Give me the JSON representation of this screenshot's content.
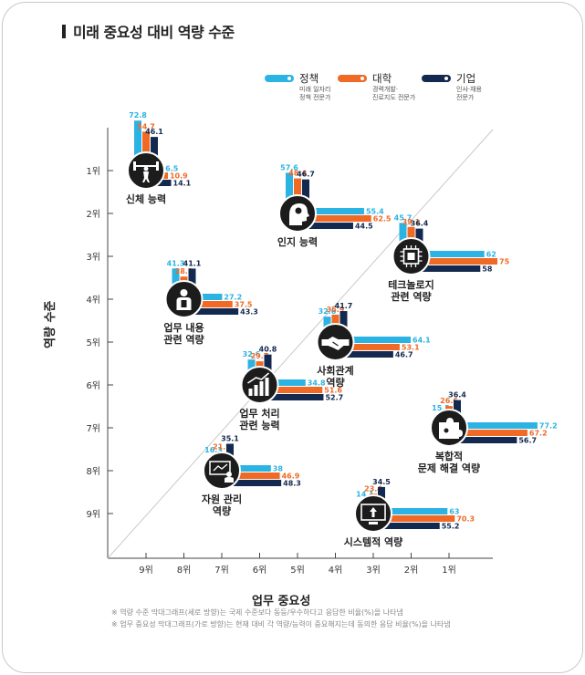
{
  "title": "미래 중요성 대비 역량 수준",
  "legend": [
    {
      "name": "정책",
      "sub": "미래 일자리\n정책 전문가",
      "color": "#2bb3e3"
    },
    {
      "name": "대학",
      "sub": "경력개발·\n진로지도 전문가",
      "color": "#f06a25"
    },
    {
      "name": "기업",
      "sub": "인사·채용\n전문가",
      "color": "#13294f"
    }
  ],
  "footnotes": [
    "※ 역량 수준 막대그래프(세로 방향)는 국제 수준보다 동등/우수하다고 응답한 비율(%)을 나타냄",
    "※ 업무 중요성 막대그래프(가로 방향)는 현재 대비 각 역량/능력이 중요해지는데 동의한 응답 비율(%)을 나타냄"
  ],
  "chart_data": {
    "type": "scatter",
    "xlabel": "업무 중요성",
    "ylabel": "역량 수준",
    "x_ticks": [
      "9위",
      "8위",
      "7위",
      "6위",
      "5위",
      "4위",
      "3위",
      "2위",
      "1위"
    ],
    "y_ticks": [
      "1위",
      "2위",
      "3위",
      "4위",
      "5위",
      "6위",
      "7위",
      "8위",
      "9위"
    ],
    "series_names": [
      "정책",
      "대학",
      "기업"
    ],
    "series_colors": [
      "#2bb3e3",
      "#f06a25",
      "#13294f"
    ],
    "icon_color": "#1c1c1c",
    "items": [
      {
        "name": "신체 능력",
        "icon": "weightlifter-icon",
        "importance_rank": 9,
        "competency_rank": 1,
        "competency": [
          72.8,
          54.7,
          46.1
        ],
        "importance": [
          6.5,
          10.9,
          14.1
        ]
      },
      {
        "name": "인지 능력",
        "icon": "head-brain-icon",
        "importance_rank": 5,
        "competency_rank": 2,
        "competency": [
          57.6,
          48.4,
          46.7
        ],
        "importance": [
          55.4,
          62.5,
          44.5
        ]
      },
      {
        "name": "테크놀로지\n관련 역량",
        "icon": "chip-icon",
        "importance_rank": 2,
        "competency_rank": 3,
        "competency": [
          45.7,
          39.1,
          36.4
        ],
        "importance": [
          62.0,
          75.0,
          58.0
        ]
      },
      {
        "name": "업무 내용\n관련 역량",
        "icon": "worker-icon",
        "importance_rank": 8,
        "competency_rank": 4,
        "competency": [
          41.3,
          28.1,
          41.1
        ],
        "importance": [
          27.2,
          37.5,
          43.3
        ]
      },
      {
        "name": "사회관계\n역량",
        "icon": "handshake-icon",
        "importance_rank": 4,
        "competency_rank": 5,
        "competency": [
          32.6,
          35.9,
          41.7
        ],
        "importance": [
          64.1,
          53.1,
          46.7
        ]
      },
      {
        "name": "업무 처리\n관련 능력",
        "icon": "growth-chart-icon",
        "importance_rank": 6,
        "competency_rank": 6,
        "competency": [
          32.6,
          29.7,
          40.8
        ],
        "importance": [
          34.8,
          51.6,
          52.7
        ]
      },
      {
        "name": "복합적\n문제 해결 역량",
        "icon": "puzzle-icon",
        "importance_rank": 1,
        "competency_rank": 7,
        "competency": [
          15.2,
          26.6,
          36.4
        ],
        "importance": [
          77.2,
          67.2,
          56.7
        ]
      },
      {
        "name": "자원 관리\n역량",
        "icon": "presentation-icon",
        "importance_rank": 7,
        "competency_rank": 8,
        "competency": [
          16.3,
          21.9,
          35.1
        ],
        "importance": [
          "38",
          46.9,
          48.3
        ]
      },
      {
        "name": "시스템적 역량",
        "icon": "system-monitor-icon",
        "importance_rank": 3,
        "competency_rank": 9,
        "competency": [
          14.1,
          23.4,
          34.5
        ],
        "importance": [
          63.0,
          70.3,
          55.2
        ]
      }
    ]
  }
}
